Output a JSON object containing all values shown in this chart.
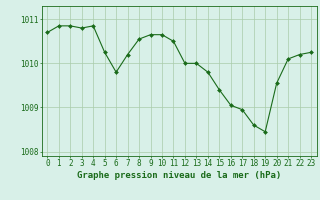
{
  "x": [
    0,
    1,
    2,
    3,
    4,
    5,
    6,
    7,
    8,
    9,
    10,
    11,
    12,
    13,
    14,
    15,
    16,
    17,
    18,
    19,
    20,
    21,
    22,
    23
  ],
  "y": [
    1010.7,
    1010.85,
    1010.85,
    1010.8,
    1010.85,
    1010.25,
    1009.8,
    1010.2,
    1010.55,
    1010.65,
    1010.65,
    1010.5,
    1010.0,
    1010.0,
    1009.8,
    1009.4,
    1009.05,
    1008.95,
    1008.6,
    1008.45,
    1009.55,
    1010.1,
    1010.2,
    1010.25
  ],
  "line_color": "#1a6b1a",
  "marker_color": "#1a6b1a",
  "bg_color": "#d8f0e8",
  "grid_color": "#aaccaa",
  "axis_color": "#1a6b1a",
  "xlabel": "Graphe pression niveau de la mer (hPa)",
  "ylim": [
    1007.9,
    1011.3
  ],
  "yticks": [
    1008,
    1009,
    1010,
    1011
  ],
  "xticks": [
    0,
    1,
    2,
    3,
    4,
    5,
    6,
    7,
    8,
    9,
    10,
    11,
    12,
    13,
    14,
    15,
    16,
    17,
    18,
    19,
    20,
    21,
    22,
    23
  ],
  "label_fontsize": 6.5,
  "tick_fontsize": 5.5
}
